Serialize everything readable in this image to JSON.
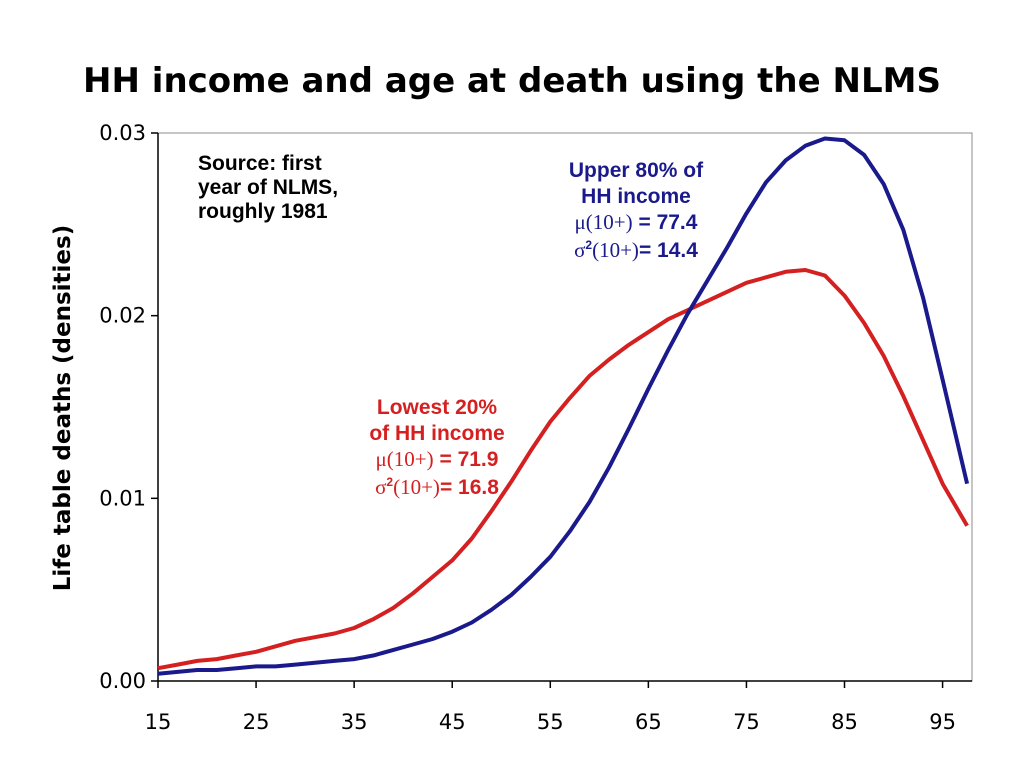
{
  "chart_data": {
    "type": "line",
    "title": "HH income and age at death using the NLMS",
    "ylabel": "Life table deaths (densities)",
    "xlabel": "",
    "xlim": [
      15,
      98
    ],
    "ylim": [
      0,
      0.03
    ],
    "x_ticks": [
      "15",
      "25",
      "35",
      "45",
      "55",
      "65",
      "75",
      "85",
      "95"
    ],
    "x_tick_values": [
      15,
      25,
      35,
      45,
      55,
      65,
      75,
      85,
      95
    ],
    "y_ticks": [
      "0.00",
      "0.01",
      "0.02",
      "0.03"
    ],
    "y_tick_values": [
      0,
      0.01,
      0.02,
      0.03
    ],
    "grid": false,
    "series": [
      {
        "color": "#d42020",
        "x": [
          15,
          17,
          19,
          21,
          23,
          25,
          27,
          29,
          31,
          33,
          35,
          37,
          39,
          41,
          43,
          45,
          47,
          49,
          51,
          53,
          55,
          57,
          59,
          61,
          63,
          65,
          67,
          69,
          71,
          73,
          75,
          77,
          79,
          81,
          83,
          85,
          87,
          89,
          91,
          93,
          95,
          97.5
        ],
        "values": [
          0.0007,
          0.0009,
          0.0011,
          0.0012,
          0.0014,
          0.0016,
          0.0019,
          0.0022,
          0.0024,
          0.0026,
          0.0029,
          0.0034,
          0.004,
          0.0048,
          0.0057,
          0.0066,
          0.0078,
          0.0093,
          0.0109,
          0.0126,
          0.0142,
          0.0155,
          0.0167,
          0.0176,
          0.0184,
          0.0191,
          0.0198,
          0.0203,
          0.0208,
          0.0213,
          0.0218,
          0.0221,
          0.0224,
          0.0225,
          0.0222,
          0.0211,
          0.0196,
          0.0178,
          0.0156,
          0.0132,
          0.0108,
          0.0085
        ]
      },
      {
        "color": "#1a1a8c",
        "x": [
          15,
          17,
          19,
          21,
          23,
          25,
          27,
          29,
          31,
          33,
          35,
          37,
          39,
          41,
          43,
          45,
          47,
          49,
          51,
          53,
          55,
          57,
          59,
          61,
          63,
          65,
          67,
          69,
          71,
          73,
          75,
          77,
          79,
          81,
          83,
          85,
          87,
          89,
          91,
          93,
          95,
          97.5
        ],
        "values": [
          0.0004,
          0.0005,
          0.0006,
          0.0006,
          0.0007,
          0.0008,
          0.0008,
          0.0009,
          0.001,
          0.0011,
          0.0012,
          0.0014,
          0.0017,
          0.002,
          0.0023,
          0.0027,
          0.0032,
          0.0039,
          0.0047,
          0.0057,
          0.0068,
          0.0082,
          0.0098,
          0.0117,
          0.0138,
          0.016,
          0.0181,
          0.0201,
          0.0219,
          0.0237,
          0.0256,
          0.0273,
          0.0285,
          0.0293,
          0.0297,
          0.0296,
          0.0288,
          0.0272,
          0.0247,
          0.021,
          0.0165,
          0.0108
        ]
      }
    ],
    "annotations": {
      "source": [
        "Source: first",
        "year of NLMS,",
        "roughly 1981"
      ],
      "upper": {
        "color": "#1a1a8c",
        "lines": [
          "Upper 80% of",
          "HH income"
        ],
        "mu": "μ(10+)",
        "mu_val": " = 77.4",
        "sigma": "σ",
        "sigma_sup": "2",
        "sigma_arg": "(10+)",
        "sigma_val": "= 14.4"
      },
      "lower": {
        "color": "#d42020",
        "lines": [
          "Lowest 20%",
          "of HH income"
        ],
        "mu": "μ(10+)",
        "mu_val": " = 71.9",
        "sigma": "σ",
        "sigma_sup": "2",
        "sigma_arg": "(10+)",
        "sigma_val": "= 16.8"
      }
    }
  }
}
